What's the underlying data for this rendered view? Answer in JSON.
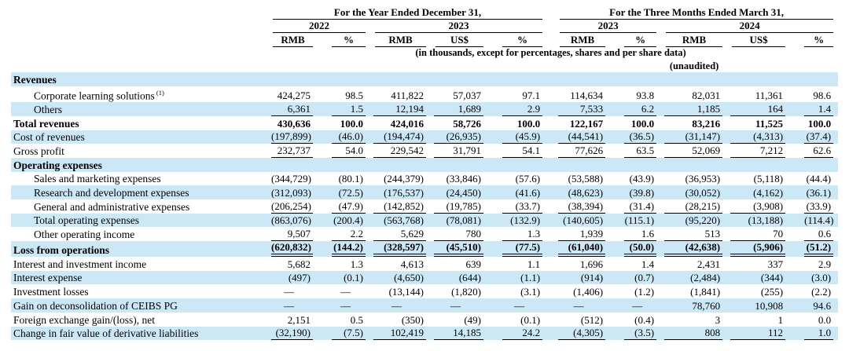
{
  "colors": {
    "row_shade": "#cce8f7",
    "text": "#000000",
    "rule_line": "#000000"
  },
  "header": {
    "group1": "For the Year Ended December 31,",
    "group2": "For the Three Months Ended March 31,",
    "years": [
      "2022",
      "2023",
      "2023",
      "2024"
    ],
    "units": [
      "RMB",
      "%",
      "RMB",
      "US$",
      "%",
      "RMB",
      "%",
      "RMB",
      "US$",
      "%"
    ],
    "note1": "(in thousands, except for percentages, shares and per share data)",
    "note2": "(unaudited)"
  },
  "rows": [
    {
      "label": "Revenues",
      "section": true,
      "shade": true,
      "bold": true,
      "indent": false,
      "underline": "none",
      "values": []
    },
    {
      "label": "Corporate learning solutions",
      "sup": "(1)",
      "section": false,
      "shade": false,
      "bold": false,
      "indent": true,
      "underline": "none",
      "values": [
        "424,275",
        "98.5",
        "411,822",
        "57,037",
        "97.1",
        "114,634",
        "93.8",
        "82,031",
        "11,361",
        "98.6"
      ]
    },
    {
      "label": "Others",
      "section": false,
      "shade": true,
      "bold": false,
      "indent": true,
      "underline": "single",
      "values": [
        "6,361",
        "1.5",
        "12,194",
        "1,689",
        "2.9",
        "7,533",
        "6.2",
        "1,185",
        "164",
        "1.4"
      ]
    },
    {
      "label": "Total revenues",
      "section": false,
      "shade": false,
      "bold": true,
      "indent": false,
      "underline": "none",
      "values": [
        "430,636",
        "100.0",
        "424,016",
        "58,726",
        "100.0",
        "122,167",
        "100.0",
        "83,216",
        "11,525",
        "100.0"
      ]
    },
    {
      "label": "Cost of revenues",
      "section": false,
      "shade": true,
      "bold": false,
      "indent": false,
      "underline": "single",
      "values": [
        "(197,899)",
        "(46.0)",
        "(194,474)",
        "(26,935)",
        "(45.9)",
        "(44,541)",
        "(36.5)",
        "(31,147)",
        "(4,313)",
        "(37.4)"
      ]
    },
    {
      "label": "Gross profit",
      "section": false,
      "shade": false,
      "bold": false,
      "indent": false,
      "underline": "single",
      "values": [
        "232,737",
        "54.0",
        "229,542",
        "31,791",
        "54.1",
        "77,626",
        "63.5",
        "52,069",
        "7,212",
        "62.6"
      ]
    },
    {
      "label": "Operating expenses",
      "section": true,
      "shade": true,
      "bold": true,
      "indent": false,
      "underline": "none",
      "values": []
    },
    {
      "label": "Sales and marketing expenses",
      "section": false,
      "shade": false,
      "bold": false,
      "indent": true,
      "underline": "none",
      "values": [
        "(344,729)",
        "(80.1)",
        "(244,379)",
        "(33,846)",
        "(57.6)",
        "(53,588)",
        "(43.9)",
        "(36,953)",
        "(5,118)",
        "(44.4)"
      ]
    },
    {
      "label": "Research and development expenses",
      "section": false,
      "shade": true,
      "bold": false,
      "indent": true,
      "underline": "none",
      "values": [
        "(312,093)",
        "(72.5)",
        "(176,537)",
        "(24,450)",
        "(41.6)",
        "(48,623)",
        "(39.8)",
        "(30,052)",
        "(4,162)",
        "(36.1)"
      ]
    },
    {
      "label": "General and administrative expenses",
      "section": false,
      "shade": false,
      "bold": false,
      "indent": true,
      "underline": "single",
      "values": [
        "(206,254)",
        "(47.9)",
        "(142,852)",
        "(19,785)",
        "(33.7)",
        "(38,394)",
        "(31.4)",
        "(28,215)",
        "(3,908)",
        "(33.9)"
      ]
    },
    {
      "label": "Total operating expenses",
      "section": false,
      "shade": true,
      "bold": false,
      "indent": true,
      "underline": "none",
      "values": [
        "(863,076)",
        "(200.4)",
        "(563,768)",
        "(78,081)",
        "(132.9)",
        "(140,605)",
        "(115.1)",
        "(95,220)",
        "(13,188)",
        "(114.4)"
      ]
    },
    {
      "label": "Other operating income",
      "section": false,
      "shade": false,
      "bold": false,
      "indent": true,
      "underline": "single",
      "values": [
        "9,507",
        "2.2",
        "5,629",
        "780",
        "1.3",
        "1,939",
        "1.6",
        "513",
        "70",
        "0.6"
      ]
    },
    {
      "label": "Loss from operations",
      "section": false,
      "shade": true,
      "bold": true,
      "indent": false,
      "underline": "double",
      "values": [
        "(620,832)",
        "(144.2)",
        "(328,597)",
        "(45,510)",
        "(77.5)",
        "(61,040)",
        "(50.0)",
        "(42,638)",
        "(5,906)",
        "(51.2)"
      ]
    },
    {
      "label": "Interest and investment income",
      "section": false,
      "shade": false,
      "bold": false,
      "indent": false,
      "underline": "none",
      "values": [
        "5,682",
        "1.3",
        "4,613",
        "639",
        "1.1",
        "1,696",
        "1.4",
        "2,431",
        "337",
        "2.9"
      ]
    },
    {
      "label": "Interest expense",
      "section": false,
      "shade": true,
      "bold": false,
      "indent": false,
      "underline": "none",
      "values": [
        "(497)",
        "(0.1)",
        "(4,650)",
        "(644)",
        "(1.1)",
        "(914)",
        "(0.7)",
        "(2,484)",
        "(344)",
        "(3.0)"
      ]
    },
    {
      "label": "Investment losses",
      "section": false,
      "shade": false,
      "bold": false,
      "indent": false,
      "underline": "none",
      "values": [
        "—",
        "—",
        "(13,144)",
        "(1,820)",
        "(3.1)",
        "(1,406)",
        "(1.2)",
        "(1,841)",
        "(255)",
        "(2.2)"
      ]
    },
    {
      "label": "Gain on deconsolidation of CEIBS PG",
      "section": false,
      "shade": true,
      "bold": false,
      "indent": false,
      "underline": "none",
      "values": [
        "—",
        "—",
        "—",
        "—",
        "—",
        "—",
        "—",
        "78,760",
        "10,908",
        "94.6"
      ]
    },
    {
      "label": "Foreign exchange gain/(loss), net",
      "section": false,
      "shade": false,
      "bold": false,
      "indent": false,
      "underline": "none",
      "values": [
        "2,151",
        "0.5",
        "(350)",
        "(49)",
        "(0.1)",
        "(512)",
        "(0.4)",
        "3",
        "1",
        "0.0"
      ]
    },
    {
      "label": "Change in fair value of derivative liabilities",
      "section": false,
      "shade": true,
      "bold": false,
      "indent": false,
      "underline": "single",
      "values": [
        "(32,190)",
        "(7.5)",
        "102,419",
        "14,185",
        "24.2",
        "(4,305)",
        "(3.5)",
        "808",
        "112",
        "1.0"
      ]
    }
  ]
}
